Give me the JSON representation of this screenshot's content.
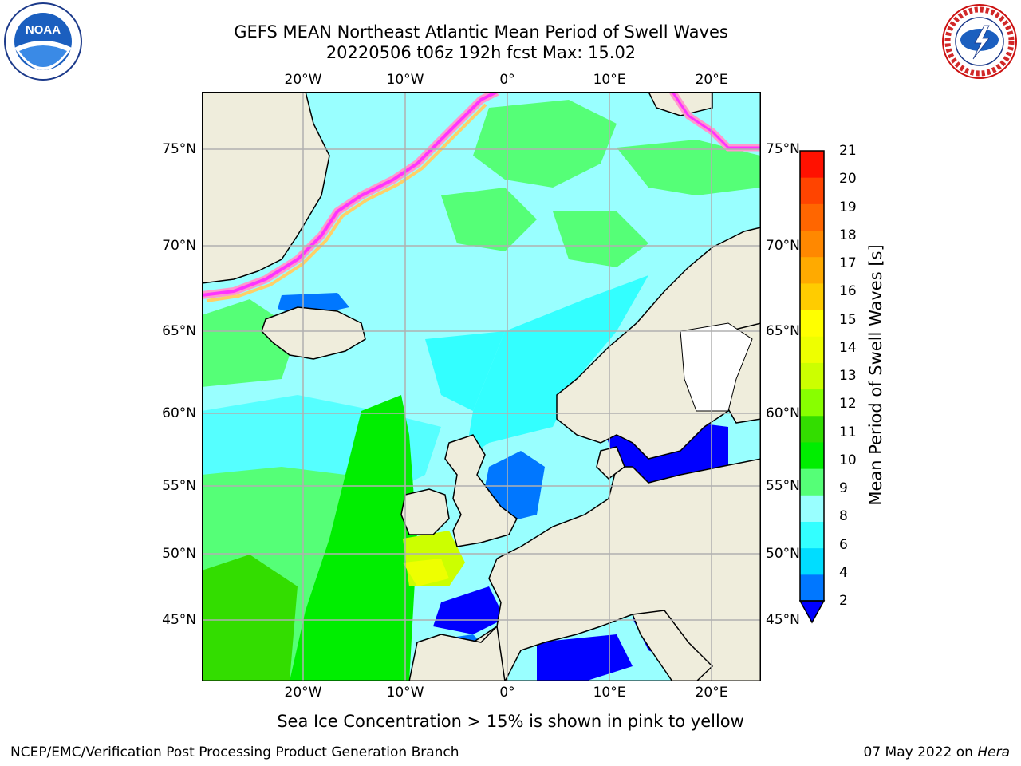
{
  "title": {
    "line1": "GEFS MEAN Northeast Atlantic Mean Period of Swell Waves",
    "line2": "20220506 t06z 192h fcst   Max: 15.02"
  },
  "map": {
    "top_axis_labels": [
      "20°W",
      "10°W",
      "0°",
      "10°E",
      "20°E"
    ],
    "bottom_axis_labels": [
      "20°W",
      "10°W",
      "0°",
      "10°E",
      "20°E"
    ],
    "left_axis_labels": [
      "75°N",
      "70°N",
      "65°N",
      "60°N",
      "55°N",
      "50°N",
      "45°N"
    ],
    "right_axis_labels": [
      "75°N",
      "70°N",
      "65°N",
      "60°N",
      "55°N",
      "50°N",
      "45°N"
    ],
    "lon_range": [
      -30,
      25
    ],
    "lat_range": [
      41,
      78
    ],
    "land_color": "#efeddc",
    "ice_colors": [
      "#ff33ff",
      "#ff99cc",
      "#ffd066",
      "#ffff33"
    ]
  },
  "colorbar": {
    "label": "Mean Period of Swell Waves [s]",
    "ticks": [
      "21",
      "20",
      "19",
      "18",
      "17",
      "16",
      "15",
      "14",
      "13",
      "12",
      "11",
      "10",
      "9",
      "8",
      "6",
      "4",
      "2"
    ],
    "colors": [
      "#0000ff",
      "#0077ff",
      "#00ddff",
      "#33ffff",
      "#99ffff",
      "#55ff77",
      "#00ee00",
      "#33dd00",
      "#88ff00",
      "#ccff00",
      "#eeff00",
      "#ffff00",
      "#ffcc00",
      "#ffaa00",
      "#ff8800",
      "#ff6600",
      "#ff4400",
      "#ff1100"
    ]
  },
  "logos": {
    "noaa_text": "NOAA",
    "nws_text": "NATIONAL WEATHER SERVICE"
  },
  "ice_note": "Sea Ice Concentration > 15% is shown in pink to yellow",
  "footer": {
    "left": "NCEP/EMC/Verification Post Processing Product Generation Branch",
    "right_date": "07 May 2022 on ",
    "right_host": "Hera"
  }
}
